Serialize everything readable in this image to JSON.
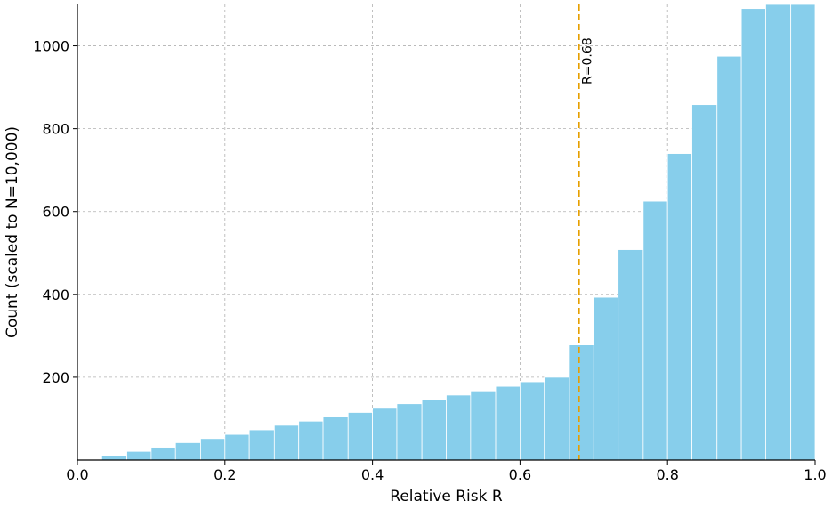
{
  "chart_data": {
    "type": "bar",
    "xlabel": "Relative Risk R",
    "ylabel": "Count (scaled to N=10,000)",
    "xlim": [
      0.0,
      1.0
    ],
    "ylim": [
      0,
      1100
    ],
    "grid": true,
    "bar_color": "#87ceeb",
    "reference_line": {
      "x": 0.68,
      "label": "R=0.68",
      "color": "#e69f00",
      "style": "dashed"
    },
    "x_ticks": [
      {
        "value": 0.0,
        "label": "0.0"
      },
      {
        "value": 0.2,
        "label": "0.2"
      },
      {
        "value": 0.4,
        "label": "0.4"
      },
      {
        "value": 0.6,
        "label": "0.6"
      },
      {
        "value": 0.8,
        "label": "0.8"
      },
      {
        "value": 1.0,
        "label": "1.0"
      }
    ],
    "y_ticks": [
      {
        "value": 200,
        "label": "200"
      },
      {
        "value": 400,
        "label": "400"
      },
      {
        "value": 600,
        "label": "600"
      },
      {
        "value": 800,
        "label": "800"
      },
      {
        "value": 1000,
        "label": "1000"
      }
    ],
    "bins": [
      {
        "start": 0.033,
        "end": 0.067,
        "count": 10
      },
      {
        "start": 0.067,
        "end": 0.1,
        "count": 21
      },
      {
        "start": 0.1,
        "end": 0.133,
        "count": 31
      },
      {
        "start": 0.133,
        "end": 0.167,
        "count": 42
      },
      {
        "start": 0.167,
        "end": 0.2,
        "count": 52
      },
      {
        "start": 0.2,
        "end": 0.233,
        "count": 62
      },
      {
        "start": 0.233,
        "end": 0.267,
        "count": 73
      },
      {
        "start": 0.267,
        "end": 0.3,
        "count": 84
      },
      {
        "start": 0.3,
        "end": 0.333,
        "count": 94
      },
      {
        "start": 0.333,
        "end": 0.367,
        "count": 104
      },
      {
        "start": 0.367,
        "end": 0.4,
        "count": 115
      },
      {
        "start": 0.4,
        "end": 0.433,
        "count": 125
      },
      {
        "start": 0.433,
        "end": 0.467,
        "count": 136
      },
      {
        "start": 0.467,
        "end": 0.5,
        "count": 146
      },
      {
        "start": 0.5,
        "end": 0.533,
        "count": 157
      },
      {
        "start": 0.533,
        "end": 0.567,
        "count": 167
      },
      {
        "start": 0.567,
        "end": 0.6,
        "count": 178
      },
      {
        "start": 0.6,
        "end": 0.633,
        "count": 189
      },
      {
        "start": 0.633,
        "end": 0.667,
        "count": 200
      },
      {
        "start": 0.667,
        "end": 0.7,
        "count": 278
      },
      {
        "start": 0.7,
        "end": 0.733,
        "count": 393
      },
      {
        "start": 0.733,
        "end": 0.767,
        "count": 508
      },
      {
        "start": 0.767,
        "end": 0.8,
        "count": 625
      },
      {
        "start": 0.8,
        "end": 0.833,
        "count": 740
      },
      {
        "start": 0.833,
        "end": 0.867,
        "count": 858
      },
      {
        "start": 0.867,
        "end": 0.9,
        "count": 975
      },
      {
        "start": 0.9,
        "end": 0.933,
        "count": 1090
      },
      {
        "start": 0.933,
        "end": 0.967,
        "count": 1100
      },
      {
        "start": 0.967,
        "end": 1.0,
        "count": 1100
      }
    ]
  }
}
